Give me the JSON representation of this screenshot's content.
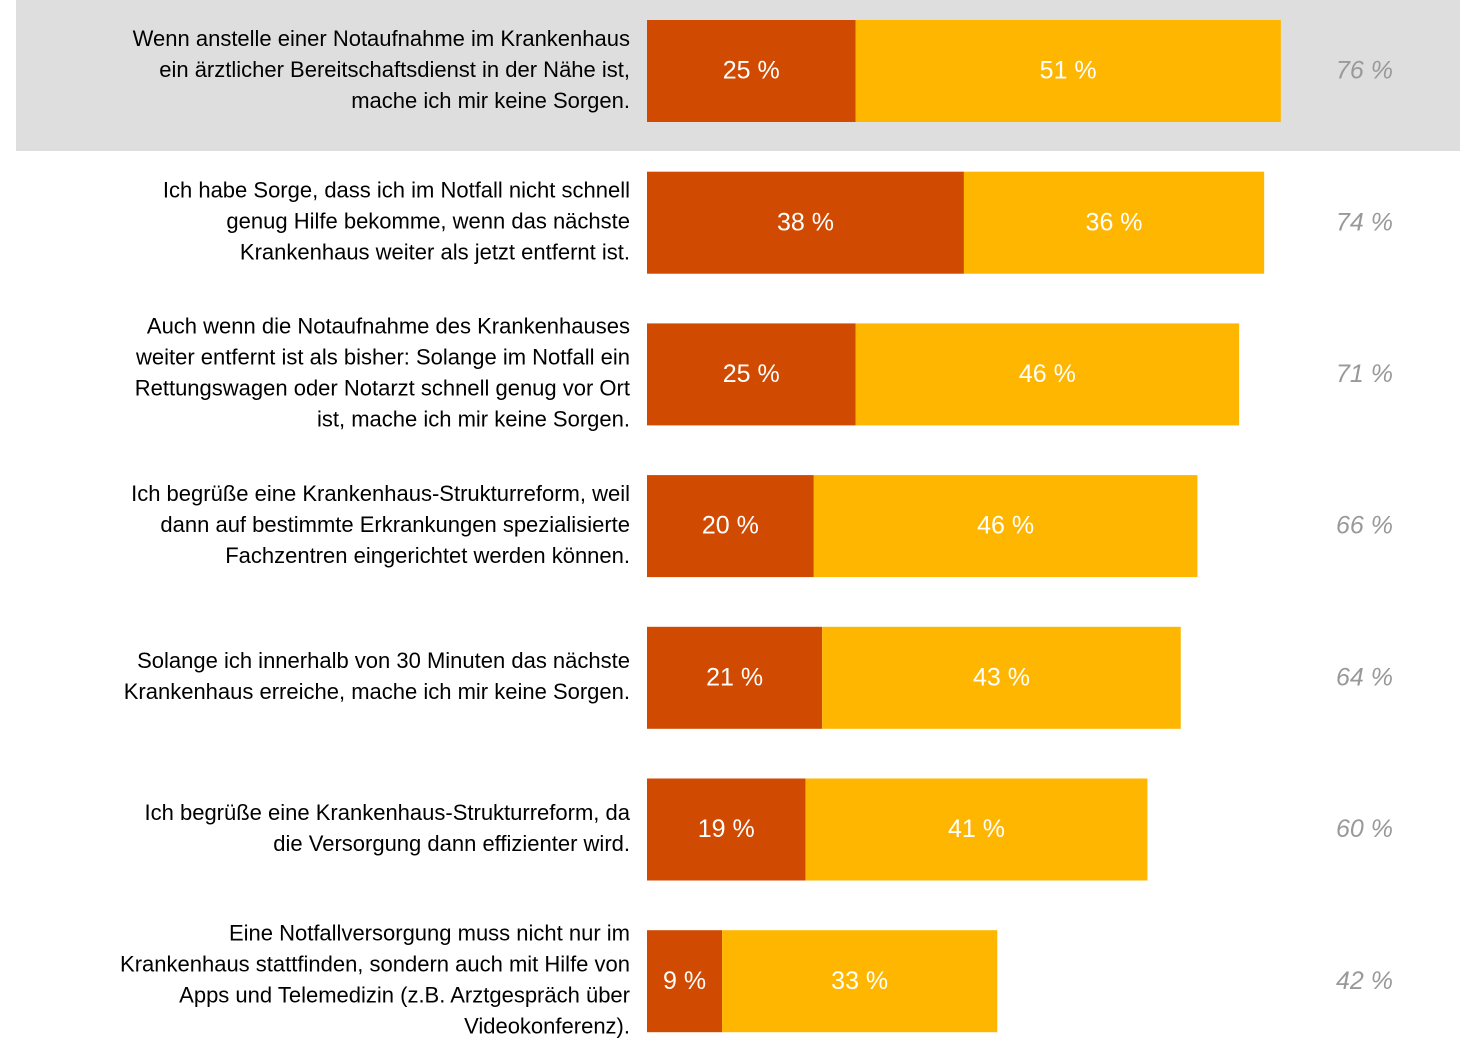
{
  "chart_data": {
    "type": "stacked-bar-horizontal",
    "categories": [
      [
        "Wenn anstelle einer Notaufnahme im Krankenhaus",
        "ein ärztlicher Bereitschaftsdienst in der Nähe ist,",
        "mache ich mir keine Sorgen."
      ],
      [
        "Ich habe Sorge, dass ich im Notfall nicht schnell",
        "genug Hilfe bekomme, wenn das nächste",
        "Krankenhaus weiter als jetzt entfernt ist."
      ],
      [
        "Auch wenn die Notaufnahme des Krankenhauses",
        "weiter entfernt ist als bisher: Solange im Notfall ein",
        "Rettungswagen oder Notarzt schnell genug vor Ort",
        "ist, mache ich mir keine Sorgen."
      ],
      [
        "Ich begrüße eine Krankenhaus-Strukturreform, weil",
        "dann auf bestimmte Erkrankungen spezialisierte",
        "Fachzentren eingerichtet werden können."
      ],
      [
        "Solange ich innerhalb von 30 Minuten das nächste",
        "Krankenhaus erreiche, mache ich mir keine Sorgen."
      ],
      [
        "Ich begrüße eine Krankenhaus-Strukturreform, da",
        "die Versorgung dann effizienter wird."
      ],
      [
        "Eine Notfallversorgung muss nicht nur im",
        "Krankenhaus stattfinden, sondern auch mit Hilfe von",
        "Apps und Telemedizin (z.B. Arztgespräch über",
        "Videokonferenz)."
      ]
    ],
    "series": [
      {
        "color": "#d04a02",
        "values": [
          25,
          38,
          25,
          20,
          21,
          19,
          9
        ],
        "value_labels": [
          "25 %",
          "38 %",
          "25 %",
          "20 %",
          "21 %",
          "19 %",
          "9 %"
        ]
      },
      {
        "color": "#ffb600",
        "values": [
          51,
          36,
          46,
          46,
          43,
          41,
          33
        ],
        "value_labels": [
          "51 %",
          "36 %",
          "46 %",
          "46 %",
          "43 %",
          "41 %",
          "33 %"
        ]
      }
    ],
    "totals": {
      "values": [
        76,
        74,
        71,
        66,
        64,
        60,
        42
      ],
      "value_labels": [
        "76 %",
        "74 %",
        "71 %",
        "66 %",
        "64 %",
        "60 %",
        "42 %"
      ]
    },
    "xlim": [
      0,
      100
    ]
  }
}
